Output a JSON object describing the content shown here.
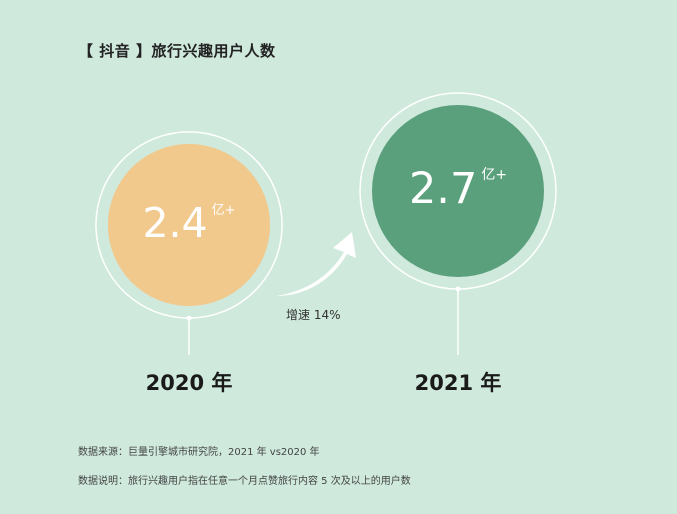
{
  "title": "【 抖音 】旅行兴趣用户人数",
  "chart_data": {
    "type": "bubble",
    "title": "【 抖音 】旅行兴趣用户人数",
    "categories": [
      "2020 年",
      "2021 年"
    ],
    "values": [
      2.4,
      2.7
    ],
    "value_unit": "亿+",
    "colors": [
      "#f2c98d",
      "#5aa07c"
    ],
    "annotation": "增速 14%"
  },
  "footnotes": {
    "source": "数据来源：巨量引擎城市研究院，2021 年 vs2020 年",
    "note": "数据说明：旅行兴趣用户指在任意一个月点赞旅行内容 5 次及以上的用户数"
  }
}
